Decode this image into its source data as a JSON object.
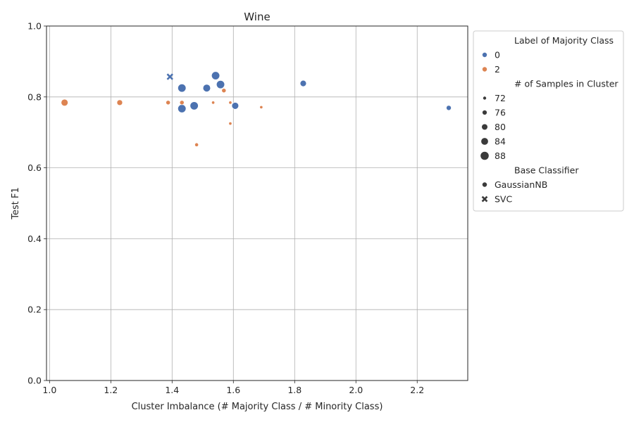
{
  "chart_data": {
    "type": "scatter",
    "title": "Wine",
    "xlabel": "Cluster Imbalance (# Majority Class / # Minority Class)",
    "ylabel": "Test F1",
    "xlim": [
      0.99,
      2.365
    ],
    "ylim": [
      0.0,
      1.0
    ],
    "xticks": [
      "1.0",
      "1.2",
      "1.4",
      "1.6",
      "1.8",
      "2.0",
      "2.2"
    ],
    "xtick_values": [
      1.0,
      1.2,
      1.4,
      1.6,
      1.8,
      2.0,
      2.2
    ],
    "yticks": [
      "0.0",
      "0.2",
      "0.4",
      "0.6",
      "0.8",
      "1.0"
    ],
    "ytick_values": [
      0.0,
      0.2,
      0.4,
      0.6,
      0.8,
      1.0
    ],
    "grid": true,
    "colors": {
      "0": "#4c72b0",
      "2": "#dd8452",
      "neutral": "#3b3b3b"
    },
    "points": [
      {
        "x": 1.393,
        "y": 0.857,
        "label": "0",
        "n": 80,
        "clf": "SVC"
      },
      {
        "x": 1.542,
        "y": 0.86,
        "label": "0",
        "n": 88,
        "clf": "GaussianNB"
      },
      {
        "x": 1.558,
        "y": 0.835,
        "label": "0",
        "n": 88,
        "clf": "GaussianNB"
      },
      {
        "x": 1.432,
        "y": 0.825,
        "label": "0",
        "n": 88,
        "clf": "GaussianNB"
      },
      {
        "x": 1.513,
        "y": 0.825,
        "label": "0",
        "n": 86,
        "clf": "GaussianNB"
      },
      {
        "x": 1.472,
        "y": 0.775,
        "label": "0",
        "n": 88,
        "clf": "GaussianNB"
      },
      {
        "x": 1.432,
        "y": 0.767,
        "label": "0",
        "n": 88,
        "clf": "GaussianNB"
      },
      {
        "x": 1.606,
        "y": 0.775,
        "label": "0",
        "n": 84,
        "clf": "GaussianNB"
      },
      {
        "x": 1.828,
        "y": 0.838,
        "label": "0",
        "n": 82,
        "clf": "GaussianNB"
      },
      {
        "x": 2.303,
        "y": 0.769,
        "label": "0",
        "n": 78,
        "clf": "GaussianNB"
      },
      {
        "x": 1.049,
        "y": 0.784,
        "label": "2",
        "n": 84,
        "clf": "GaussianNB"
      },
      {
        "x": 1.229,
        "y": 0.784,
        "label": "2",
        "n": 80,
        "clf": "GaussianNB"
      },
      {
        "x": 1.387,
        "y": 0.784,
        "label": "2",
        "n": 76,
        "clf": "GaussianNB"
      },
      {
        "x": 1.432,
        "y": 0.784,
        "label": "2",
        "n": 76,
        "clf": "GaussianNB"
      },
      {
        "x": 1.534,
        "y": 0.784,
        "label": "2",
        "n": 72,
        "clf": "GaussianNB"
      },
      {
        "x": 1.59,
        "y": 0.784,
        "label": "2",
        "n": 72,
        "clf": "GaussianNB"
      },
      {
        "x": 1.569,
        "y": 0.818,
        "label": "2",
        "n": 76,
        "clf": "GaussianNB"
      },
      {
        "x": 1.59,
        "y": 0.725,
        "label": "2",
        "n": 72,
        "clf": "GaussianNB"
      },
      {
        "x": 1.691,
        "y": 0.771,
        "label": "2",
        "n": 72,
        "clf": "GaussianNB"
      },
      {
        "x": 1.48,
        "y": 0.665,
        "label": "2",
        "n": 74,
        "clf": "GaussianNB"
      }
    ],
    "legend": {
      "placement": "outside-right-top",
      "hue_title": "Label of Majority Class",
      "hue_entries": [
        "0",
        "2"
      ],
      "size_title": "# of Samples in Cluster",
      "size_entries": [
        "72",
        "76",
        "80",
        "84",
        "88"
      ],
      "style_title": "Base Classifier",
      "style_entries": [
        {
          "label": "GaussianNB",
          "marker": "circle"
        },
        {
          "label": "SVC",
          "marker": "x"
        }
      ]
    }
  }
}
